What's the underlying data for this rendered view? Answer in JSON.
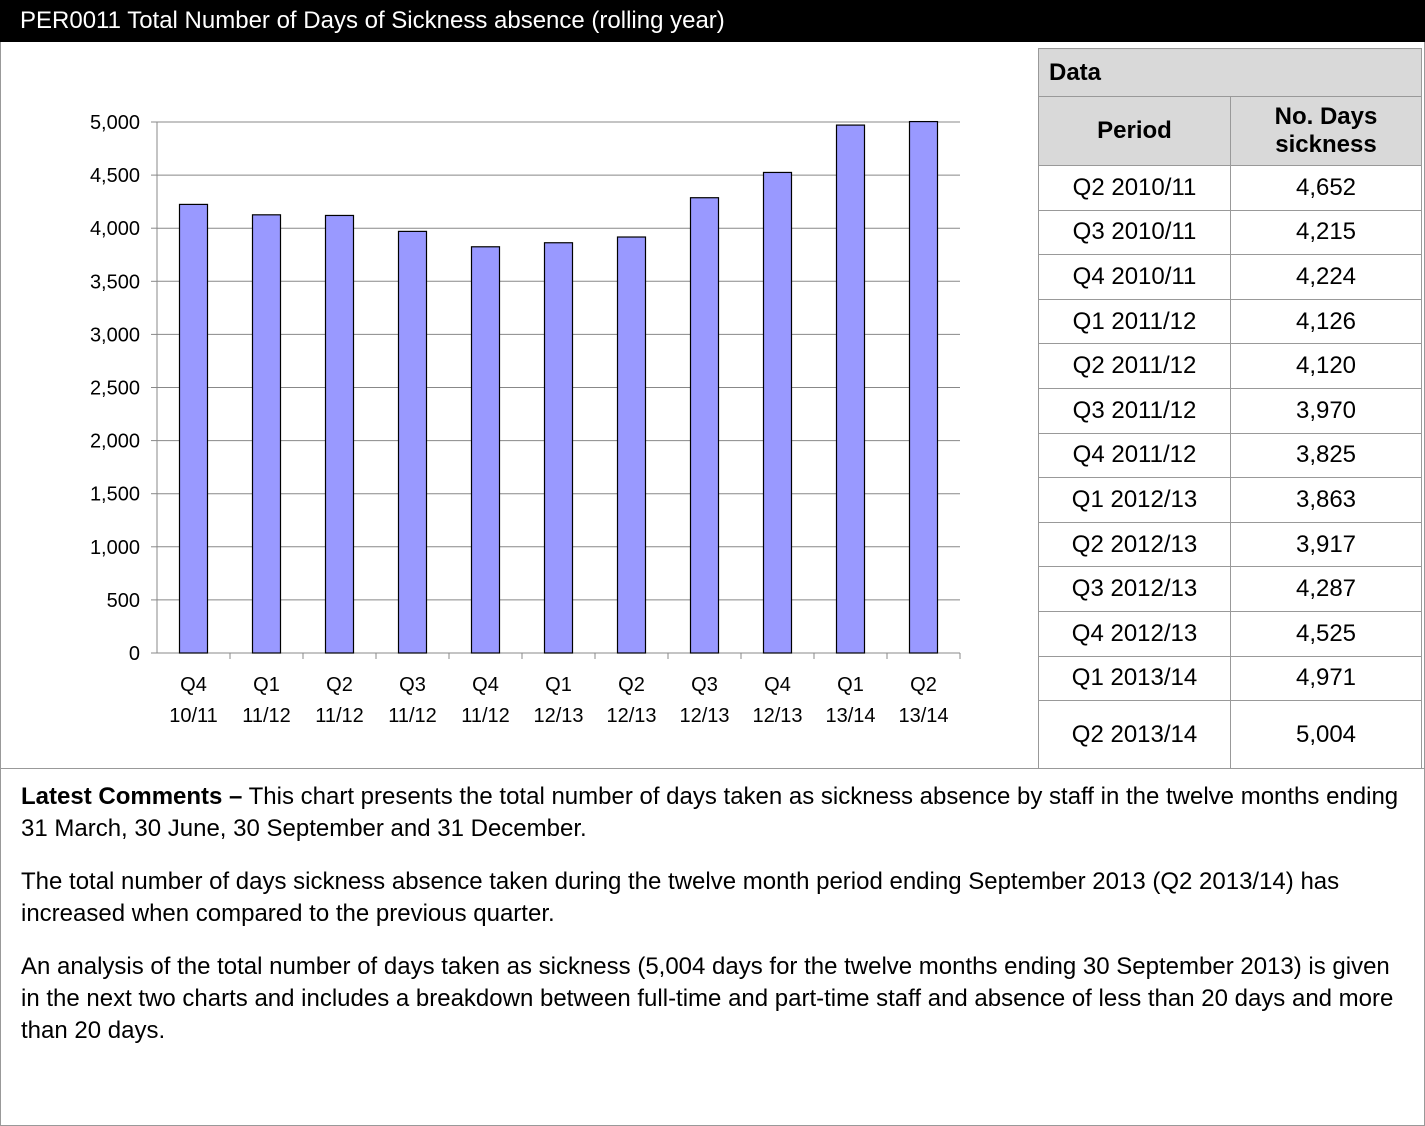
{
  "header": {
    "title": "PER0011 Total Number of Days of Sickness absence (rolling year)"
  },
  "chart_data": {
    "type": "bar",
    "categories": [
      "Q4 10/11",
      "Q1 11/12",
      "Q2 11/12",
      "Q3 11/12",
      "Q4 11/12",
      "Q1 12/13",
      "Q2 12/13",
      "Q3 12/13",
      "Q4 12/13",
      "Q1 13/14",
      "Q2 13/14"
    ],
    "values": [
      4224,
      4126,
      4120,
      3970,
      3825,
      3863,
      3917,
      4287,
      4525,
      4971,
      5004
    ],
    "color": "#9999ff",
    "ylim": [
      0,
      5000
    ],
    "yticks": [
      0,
      500,
      {
        "value": 1000,
        "label": "1,000"
      },
      {
        "value": 1500,
        "label": "1,500"
      },
      {
        "value": 2000,
        "label": "2,000"
      },
      {
        "value": 2500,
        "label": "2,500"
      },
      {
        "value": 3000,
        "label": "3,000"
      },
      {
        "value": 3500,
        "label": "3,500"
      },
      {
        "value": 4000,
        "label": "4,000"
      },
      {
        "value": 4500,
        "label": "4,500"
      },
      {
        "value": 5000,
        "label": "5,000"
      }
    ],
    "grid": true
  },
  "table": {
    "title": "Data",
    "columns": [
      "Period",
      "No. Days sickness"
    ],
    "rows": [
      [
        "Q2 2010/11",
        "4,652"
      ],
      [
        "Q3 2010/11",
        "4,215"
      ],
      [
        "Q4 2010/11",
        "4,224"
      ],
      [
        "Q1 2011/12",
        "4,126"
      ],
      [
        "Q2 2011/12",
        "4,120"
      ],
      [
        "Q3 2011/12",
        "3,970"
      ],
      [
        "Q4 2011/12",
        "3,825"
      ],
      [
        "Q1 2012/13",
        "3,863"
      ],
      [
        "Q2 2012/13",
        "3,917"
      ],
      [
        "Q3 2012/13",
        "4,287"
      ],
      [
        "Q4 2012/13",
        "4,525"
      ],
      [
        "Q1 2013/14",
        "4,971"
      ],
      [
        "Q2 2013/14",
        "5,004"
      ]
    ]
  },
  "comments": {
    "lead": "Latest Comments –",
    "paragraphs": [
      "This chart presents the total number of days taken as sickness absence by staff in the twelve months ending 31 March, 30 June, 30 September and 31 December.",
      "The total number of days sickness absence taken during the twelve month period ending September 2013 (Q2 2013/14) has increased when compared to the previous quarter.",
      "An analysis of the total number of days taken as sickness (5,004 days for the twelve months ending 30 September 2013) is given in the next two charts and includes a breakdown between full-time and part-time staff and absence of less than 20 days and more than 20 days."
    ]
  }
}
